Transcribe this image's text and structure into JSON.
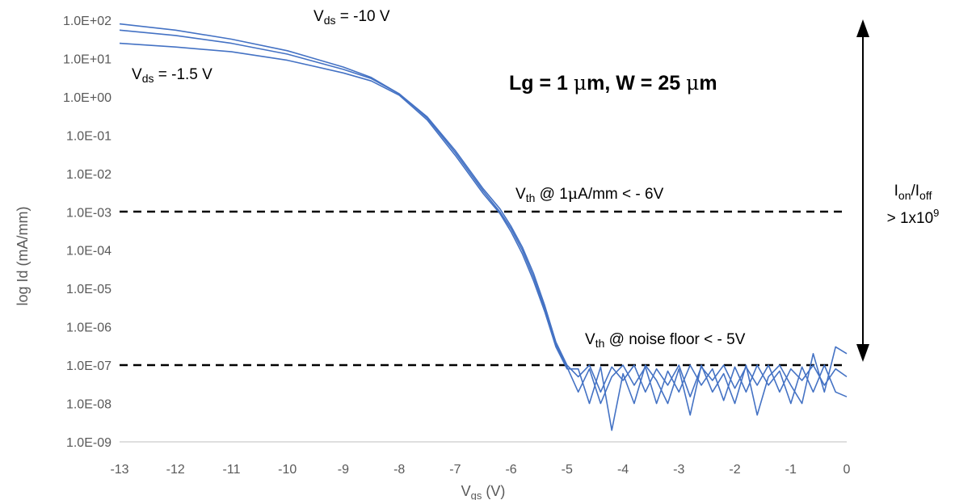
{
  "chart_data": {
    "type": "line",
    "xlabel": "V",
    "xlabel_sub": "gs",
    "xlabel_unit": " (V)",
    "ylabel": "log Id (mA/mm)",
    "xlim": [
      -13,
      0
    ],
    "ylim_log10": [
      -9,
      2
    ],
    "y_scale": "log",
    "grid": false,
    "legend": "none",
    "line_color": "#4472C4",
    "x_ticks": [
      -13,
      -12,
      -11,
      -10,
      -9,
      -8,
      -7,
      -6,
      -5,
      -4,
      -3,
      -2,
      -1,
      0
    ],
    "x_tick_labels": [
      "-13",
      "-12",
      "-11",
      "-10",
      "-9",
      "-8",
      "-7",
      "-6",
      "-5",
      "-4",
      "-3",
      "-2",
      "-1",
      "0"
    ],
    "y_tick_labels": [
      "1.0E+02",
      "1.0E+01",
      "1.0E+00",
      "1.0E-01",
      "1.0E-02",
      "1.0E-03",
      "1.0E-04",
      "1.0E-05",
      "1.0E-06",
      "1.0E-07",
      "1.0E-08",
      "1.0E-09"
    ],
    "reference_lines": [
      {
        "y": 0.001,
        "style": "dashed",
        "color": "#000000"
      },
      {
        "y": 1e-07,
        "style": "dashed",
        "color": "#000000"
      }
    ],
    "series": [
      {
        "x": [
          -13,
          -12,
          -11,
          -10,
          -9,
          -8.5,
          -8,
          -7.5,
          -7,
          -6.5,
          -6.2,
          -6,
          -5.8,
          -5.6,
          -5.4,
          -5.2,
          -5.0,
          -4.8,
          -4.6,
          -4.4,
          -4.2,
          -4.0,
          -3.8,
          -3.6,
          -3.4,
          -3.2,
          -3.0,
          -2.8,
          -2.6,
          -2.4,
          -2.2,
          -2.0,
          -1.8,
          -1.6,
          -1.4,
          -1.2,
          -1.0,
          -0.8,
          -0.6,
          -0.4,
          -0.2,
          0
        ],
        "y": [
          80,
          55,
          32,
          16,
          6,
          3.2,
          1.2,
          0.3,
          0.04,
          0.004,
          0.0012,
          0.00042,
          0.00012,
          2.5e-05,
          3.6e-06,
          4e-07,
          1e-07,
          5e-08,
          1e-07,
          2e-08,
          9e-08,
          4e-08,
          1e-07,
          2e-08,
          8e-08,
          3e-08,
          1e-07,
          1.5e-08,
          9e-08,
          4e-08,
          1e-07,
          2.5e-08,
          9e-08,
          3e-08,
          1e-07,
          2e-08,
          8e-08,
          4e-08,
          1e-07,
          3e-08,
          8e-08,
          5e-08
        ]
      },
      {
        "x": [
          -13,
          -12,
          -11,
          -10,
          -9,
          -8.5,
          -8,
          -7.5,
          -7,
          -6.5,
          -6.2,
          -6,
          -5.8,
          -5.6,
          -5.4,
          -5.2,
          -5.0,
          -4.8,
          -4.6,
          -4.4,
          -4.2,
          -4.0,
          -3.8,
          -3.6,
          -3.4,
          -3.2,
          -3.0,
          -2.8,
          -2.6,
          -2.4,
          -2.2,
          -2.0,
          -1.8,
          -1.6,
          -1.4,
          -1.2,
          -1.0,
          -0.8,
          -0.6,
          -0.4,
          -0.2,
          0
        ],
        "y": [
          55,
          40,
          25,
          13,
          5.2,
          3.0,
          1.2,
          0.28,
          0.035,
          0.0035,
          0.001,
          0.00036,
          0.0001,
          2e-05,
          3e-06,
          3.5e-07,
          9e-08,
          2e-08,
          8e-08,
          1e-08,
          5e-08,
          1e-07,
          3e-08,
          9e-08,
          1e-08,
          7e-08,
          2e-08,
          1e-07,
          3e-08,
          8e-08,
          1.2e-08,
          9e-08,
          2e-08,
          1e-07,
          3e-08,
          7e-08,
          1e-08,
          9e-08,
          2e-08,
          1e-07,
          2e-08,
          1.5e-08
        ]
      },
      {
        "x": [
          -13,
          -12,
          -11,
          -10,
          -9,
          -8.5,
          -8,
          -7.5,
          -7,
          -6.5,
          -6.2,
          -6,
          -5.8,
          -5.6,
          -5.4,
          -5.2,
          -5.0,
          -4.8,
          -4.6,
          -4.4,
          -4.2,
          -4.0,
          -3.8,
          -3.6,
          -3.4,
          -3.2,
          -3.0,
          -2.8,
          -2.6,
          -2.4,
          -2.2,
          -2.0,
          -1.8,
          -1.6,
          -1.4,
          -1.2,
          -1.0,
          -0.8,
          -0.6,
          -0.4,
          -0.2,
          0
        ],
        "y": [
          25,
          20,
          15,
          9,
          4.2,
          2.6,
          1.1,
          0.25,
          0.03,
          0.003,
          0.0009,
          0.0003,
          8e-05,
          1.6e-05,
          2.5e-06,
          3e-07,
          8e-08,
          8e-08,
          1e-08,
          9e-08,
          2e-09,
          6e-08,
          1e-08,
          1e-07,
          4e-08,
          1e-08,
          8e-08,
          5e-09,
          1e-07,
          2e-08,
          6e-08,
          1e-08,
          1e-07,
          5e-09,
          5e-08,
          1e-07,
          3e-08,
          1e-08,
          2e-07,
          2e-08,
          3e-07,
          2e-07
        ]
      }
    ],
    "annotations": {
      "vds_high_main": "V",
      "vds_high_sub": "ds",
      "vds_high_rest": " = -10 V",
      "vds_low_main": "V",
      "vds_low_sub": "ds",
      "vds_low_rest": " = -1.5 V",
      "device_pre": "Lg = 1 ",
      "device_mu1": "μ",
      "device_mid": "m, W = 25 ",
      "device_mu2": "μ",
      "device_post": "m",
      "vth1_main": "V",
      "vth1_sub": "th",
      "vth1_pre": " @ 1",
      "vth1_mu": "μ",
      "vth1_post": "A/mm < - 6V",
      "vth2_main": "V",
      "vth2_sub": "th",
      "vth2_rest": " @ noise floor < - 5V",
      "ratio_i1": "I",
      "ratio_on": "on",
      "ratio_slash": "/I",
      "ratio_off": "off",
      "ratio_line2": "> 1x10",
      "ratio_exp": "9"
    }
  }
}
